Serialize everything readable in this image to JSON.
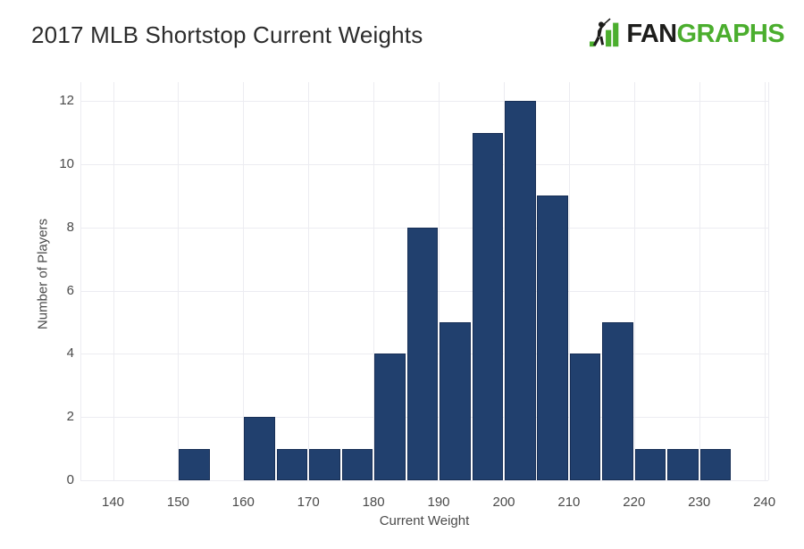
{
  "header": {
    "title": "2017 MLB Shortstop Current Weights",
    "logo": {
      "fan": "FAN",
      "graphs": "GRAPHS",
      "fan_color": "#1d1d1b",
      "graphs_color": "#4bae2e",
      "icon": "fangraphs-batter-bars-icon"
    }
  },
  "chart_data": {
    "type": "bar",
    "subtype": "histogram",
    "title": "2017 MLB Shortstop Current Weights",
    "xlabel": "Current Weight",
    "ylabel": "Number of Players",
    "bin_width": 5,
    "bins": [
      {
        "start": 150,
        "end": 155,
        "count": 1
      },
      {
        "start": 160,
        "end": 165,
        "count": 2
      },
      {
        "start": 165,
        "end": 170,
        "count": 1
      },
      {
        "start": 170,
        "end": 175,
        "count": 1
      },
      {
        "start": 175,
        "end": 180,
        "count": 1
      },
      {
        "start": 180,
        "end": 185,
        "count": 4
      },
      {
        "start": 185,
        "end": 190,
        "count": 8
      },
      {
        "start": 190,
        "end": 195,
        "count": 5
      },
      {
        "start": 195,
        "end": 200,
        "count": 11
      },
      {
        "start": 200,
        "end": 205,
        "count": 12
      },
      {
        "start": 205,
        "end": 210,
        "count": 9
      },
      {
        "start": 210,
        "end": 215,
        "count": 4
      },
      {
        "start": 215,
        "end": 220,
        "count": 5
      },
      {
        "start": 220,
        "end": 225,
        "count": 1
      },
      {
        "start": 225,
        "end": 230,
        "count": 1
      },
      {
        "start": 230,
        "end": 235,
        "count": 1
      }
    ],
    "x_ticks": [
      140,
      150,
      160,
      170,
      180,
      190,
      200,
      210,
      220,
      230,
      240
    ],
    "y_ticks": [
      0,
      2,
      4,
      6,
      8,
      10,
      12
    ],
    "x_range": [
      135,
      240.6
    ],
    "y_range": [
      0,
      12.6
    ],
    "grid": true,
    "legend": "none",
    "colors": {
      "bar_fill": "#21406e",
      "bar_border": "#182f56",
      "grid_line": "#ececf1",
      "axis_text": "#4a4a4a",
      "title_text": "#2c2c2c",
      "logo_green": "#4bae2e",
      "logo_black": "#1d1d1b"
    }
  }
}
